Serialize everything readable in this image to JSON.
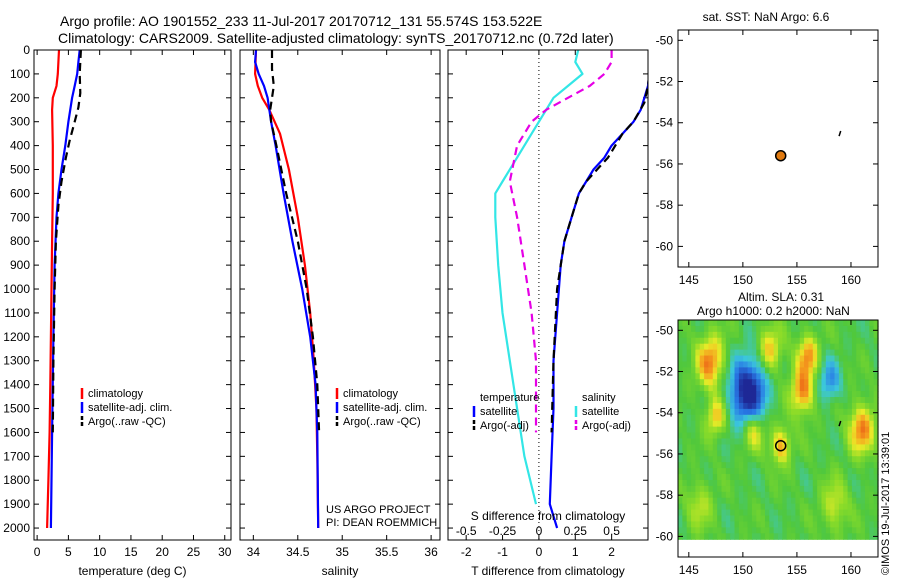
{
  "title_line1": "Argo profile: AO 1901552_233 11-Jul-2017 20170712_131 55.574S 153.522E",
  "title_line2": "Climatology: CARS2009. Satellite-adjusted climatology: synTS_20170712.nc (0.72d later)",
  "sst_title": "sat. SST: NaN Argo: 6.6",
  "sla_title1": "Altim. SLA: 0.31",
  "sla_title2": "Argo h1000: 0.2 h2000: NaN",
  "credit": "©IMOS 19-Jul-2017 13:39:01",
  "project_line1": "US ARGO PROJECT",
  "project_line2": "PI: DEAN ROEMMICH",
  "colors": {
    "climatology": "#ff0000",
    "satellite": "#0000ff",
    "argo": "#000000",
    "sal_satellite": "#33e6e6",
    "sal_argo": "#e600e6",
    "float_marker": "#e07a10"
  },
  "chart_data": [
    {
      "type": "line",
      "panel": "temperature",
      "xlabel": "temperature (deg C)",
      "xlim": [
        -0.5,
        31
      ],
      "xticks": [
        "0",
        "5",
        "10",
        "15",
        "20",
        "25",
        "30"
      ],
      "ylim": [
        2050,
        0
      ],
      "yticks": [
        "0",
        "100",
        "200",
        "300",
        "400",
        "500",
        "600",
        "700",
        "800",
        "900",
        "1000",
        "1100",
        "1200",
        "1300",
        "1400",
        "1500",
        "1600",
        "1700",
        "1800",
        "1900",
        "2000"
      ],
      "legend": [
        "climatology",
        "satellite-adj. clim.",
        "Argo(..raw -QC)"
      ],
      "series": [
        {
          "name": "climatology",
          "style": "solid",
          "color": "#ff0000",
          "x": [
            3.5,
            3.4,
            3.3,
            3.1,
            2.5,
            2.4,
            2.5,
            2.5,
            2.4,
            2.3,
            2.2,
            2.1,
            2.0,
            1.8,
            1.6
          ],
          "y": [
            0,
            50,
            100,
            150,
            200,
            250,
            400,
            600,
            800,
            1000,
            1200,
            1400,
            1600,
            1800,
            2000
          ]
        },
        {
          "name": "satellite-adj. clim.",
          "style": "solid",
          "color": "#0000ff",
          "x": [
            6.8,
            6.6,
            6.4,
            6.0,
            5.6,
            5.0,
            4.5,
            3.9,
            3.4,
            3.1,
            2.8,
            2.6,
            2.4,
            2.2
          ],
          "y": [
            0,
            50,
            100,
            150,
            200,
            300,
            400,
            500,
            600,
            700,
            900,
            1200,
            1600,
            2000
          ]
        },
        {
          "name": "Argo(..raw -QC)",
          "style": "dashed",
          "color": "#000000",
          "x": [
            7.0,
            6.8,
            6.9,
            6.6,
            6.0,
            5.2,
            4.6,
            3.9,
            3.4,
            3.0,
            2.8,
            2.6,
            2.5
          ],
          "y": [
            0,
            100,
            180,
            240,
            300,
            380,
            450,
            550,
            650,
            800,
            1000,
            1300,
            1600
          ]
        }
      ]
    },
    {
      "type": "line",
      "panel": "salinity",
      "xlabel": "salinity",
      "xlim": [
        33.85,
        36.1
      ],
      "xticks": [
        "34",
        "34.5",
        "35",
        "35.5",
        "36"
      ],
      "ylim": [
        2050,
        0
      ],
      "legend": [
        "climatology",
        "satellite-adj. clim.",
        "Argo(..raw -QC)"
      ],
      "series": [
        {
          "name": "climatology",
          "style": "solid",
          "color": "#ff0000",
          "x": [
            34.03,
            34.02,
            34.05,
            34.1,
            34.18,
            34.3,
            34.4,
            34.5,
            34.58,
            34.64,
            34.68,
            34.71,
            34.72,
            34.73
          ],
          "y": [
            0,
            100,
            150,
            200,
            250,
            350,
            500,
            700,
            900,
            1100,
            1300,
            1500,
            1700,
            2000
          ]
        },
        {
          "name": "satellite-adj. clim.",
          "style": "solid",
          "color": "#0000ff",
          "x": [
            34.03,
            34.02,
            34.06,
            34.12,
            34.16,
            34.2,
            34.25,
            34.34,
            34.44,
            34.55,
            34.64,
            34.7,
            34.72,
            34.73
          ],
          "y": [
            0,
            50,
            100,
            150,
            200,
            300,
            400,
            600,
            800,
            1000,
            1200,
            1400,
            1600,
            2000
          ]
        },
        {
          "name": "Argo(..raw -QC)",
          "style": "dashed",
          "color": "#000000",
          "x": [
            34.21,
            34.21,
            34.23,
            34.21,
            34.19,
            34.2,
            34.26,
            34.37,
            34.5,
            34.6,
            34.67,
            34.72,
            34.74
          ],
          "y": [
            0,
            80,
            150,
            200,
            250,
            300,
            400,
            600,
            800,
            1000,
            1200,
            1400,
            1600
          ]
        }
      ]
    },
    {
      "type": "line",
      "panel": "difference",
      "xlabel": "T difference from climatology",
      "xlabel_top": "S difference from climatology",
      "xlim": [
        -2.5,
        3.0
      ],
      "xticks": [
        "-2",
        "-1",
        "0",
        "1",
        "2"
      ],
      "xticks_top": [
        "-0.5",
        "-0.25",
        "0",
        "0.25",
        "0.5"
      ],
      "ylim": [
        2050,
        0
      ],
      "legend_headers": [
        "temperature",
        "salinity"
      ],
      "legend": [
        "satellite",
        "Argo(-adj)",
        "satellite",
        "Argo(-adj)"
      ],
      "series": [
        {
          "name": "satellite",
          "variable": "temperature",
          "style": "solid",
          "color": "#0000ff",
          "x": [
            3.1,
            3.0,
            2.8,
            2.6,
            2.3,
            2.0,
            1.8,
            1.5,
            1.3,
            1.1,
            0.9,
            0.7,
            0.6,
            0.5,
            0.4,
            0.4,
            0.35,
            0.3,
            0.5
          ],
          "y": [
            0,
            150,
            250,
            300,
            350,
            400,
            450,
            500,
            550,
            600,
            700,
            800,
            900,
            1100,
            1300,
            1500,
            1700,
            1900,
            2000
          ]
        },
        {
          "name": "Argo(-adj)",
          "variable": "temperature",
          "style": "dashed",
          "color": "#000000",
          "x": [
            3.1,
            3.0,
            2.9,
            2.6,
            2.3,
            2.1,
            1.9,
            1.6,
            1.3,
            1.1,
            0.9,
            0.7,
            0.5,
            0.4,
            0.35
          ],
          "y": [
            0,
            150,
            220,
            300,
            350,
            400,
            450,
            500,
            550,
            600,
            700,
            800,
            1000,
            1300,
            1600
          ]
        },
        {
          "name": "satellite",
          "variable": "salinity",
          "style": "solid",
          "color": "#33e6e6",
          "x": [
            0.27,
            0.25,
            0.3,
            0.2,
            0.1,
            0.05,
            -0.05,
            -0.15,
            -0.25,
            -0.3,
            -0.3,
            -0.28,
            -0.25,
            -0.2,
            -0.15,
            -0.1,
            -0.02
          ],
          "y": [
            0,
            50,
            100,
            150,
            200,
            250,
            350,
            450,
            550,
            600,
            700,
            900,
            1100,
            1300,
            1500,
            1700,
            1900
          ]
        },
        {
          "name": "Argo(-adj)",
          "variable": "salinity",
          "style": "dashed",
          "color": "#e600e6",
          "x": [
            0.5,
            0.5,
            0.45,
            0.35,
            0.2,
            0.05,
            -0.05,
            -0.15,
            -0.2,
            -0.15,
            -0.1,
            -0.05,
            -0.02,
            -0.02
          ],
          "y": [
            0,
            50,
            100,
            150,
            200,
            250,
            300,
            400,
            550,
            700,
            900,
            1100,
            1300,
            1600
          ]
        }
      ]
    },
    {
      "type": "scatter",
      "panel": "sst_map",
      "title": "sat. SST: NaN Argo: 6.6",
      "xlim": [
        144,
        162.5
      ],
      "ylim": [
        -61,
        -49.5
      ],
      "xticks": [
        "145",
        "150",
        "155",
        "160"
      ],
      "yticks": [
        "-50",
        "-52",
        "-54",
        "-56",
        "-58",
        "-60"
      ],
      "points": [
        {
          "x": 153.5,
          "y": -55.6,
          "marker": "filled circle"
        }
      ],
      "track": {
        "x": [
          158.9,
          159.05
        ],
        "y": [
          -54.65,
          -54.4
        ]
      }
    },
    {
      "type": "heatmap",
      "panel": "sla_map",
      "title": "Altim. SLA: 0.31 / Argo h1000: 0.2 h2000: NaN",
      "xlim": [
        144,
        162.5
      ],
      "ylim": [
        -61,
        -49.5
      ],
      "xticks": [
        "145",
        "150",
        "155",
        "160"
      ],
      "yticks": [
        "-50",
        "-52",
        "-54",
        "-56",
        "-58",
        "-60"
      ],
      "points": [
        {
          "x": 153.5,
          "y": -55.6,
          "marker": "open circle"
        }
      ],
      "track": {
        "x": [
          158.9,
          159.05
        ],
        "y": [
          -54.65,
          -54.4
        ]
      }
    }
  ]
}
